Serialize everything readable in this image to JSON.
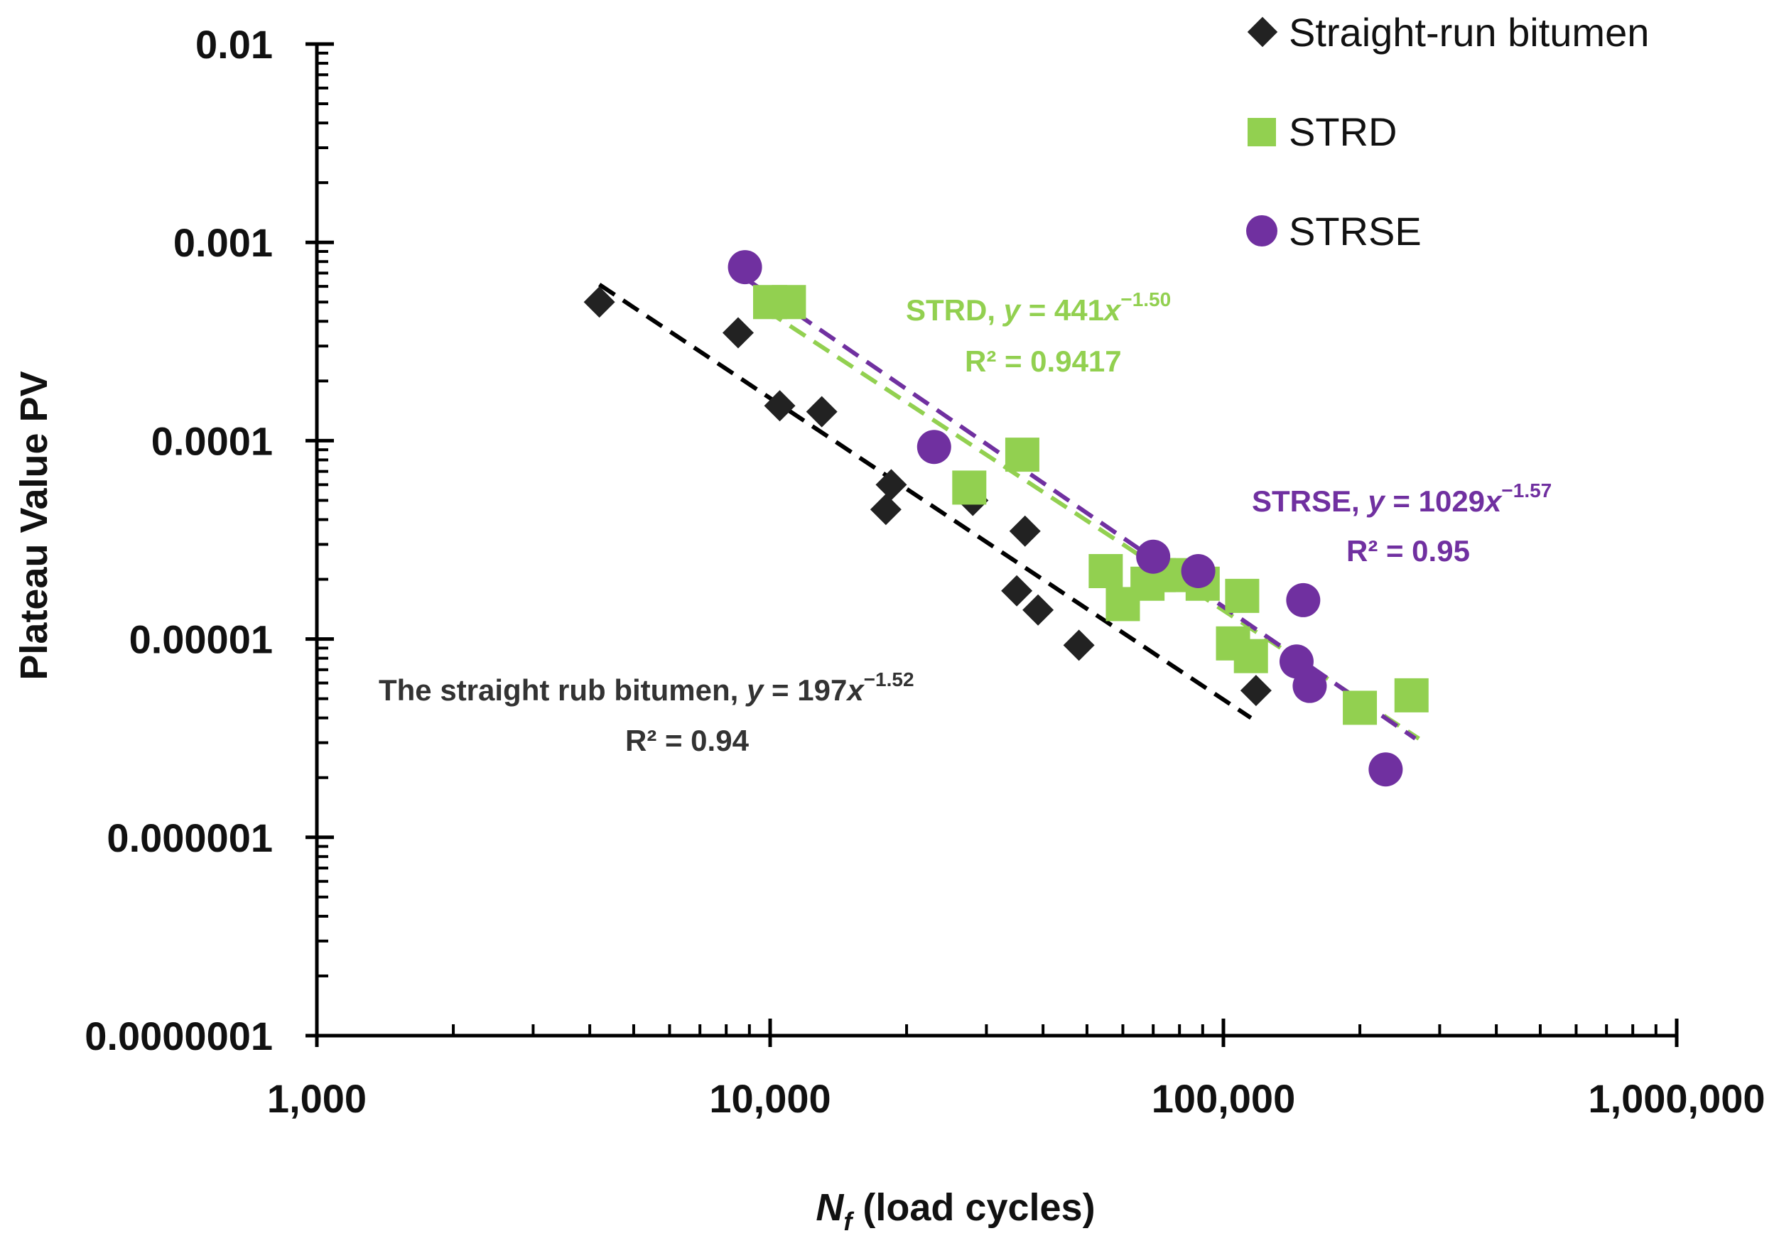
{
  "chart_data": {
    "type": "scatter",
    "title": "",
    "xlabel": {
      "var": "N",
      "sub": "f",
      "rest": " (load cycles)"
    },
    "ylabel": "Plateau Value PV",
    "x_scale": "log",
    "y_scale": "log",
    "xlim": [
      1000,
      1000000
    ],
    "ylim": [
      1e-07,
      0.01
    ],
    "x_ticks": [
      {
        "value": 1000,
        "label": "1,000"
      },
      {
        "value": 10000,
        "label": "10,000"
      },
      {
        "value": 100000,
        "label": "100,000"
      },
      {
        "value": 1000000,
        "label": "1,000,000"
      }
    ],
    "y_ticks": [
      {
        "value": 0.01,
        "label": "0.01"
      },
      {
        "value": 0.001,
        "label": "0.001"
      },
      {
        "value": 0.0001,
        "label": "0.0001"
      },
      {
        "value": 1e-05,
        "label": "0.00001"
      },
      {
        "value": 1e-06,
        "label": "0.000001"
      },
      {
        "value": 1e-07,
        "label": "0.0000001"
      }
    ],
    "legend_position": "top-right",
    "series": [
      {
        "name": "Straight-run bitumen",
        "marker": "diamond",
        "color": "#222222",
        "x": [
          4200,
          8500,
          10500,
          13000,
          18000,
          18500,
          28000,
          35000,
          36500,
          39000,
          48000,
          118000
        ],
        "y": [
          0.0005,
          0.00035,
          0.00015,
          0.00014,
          4.5e-05,
          6e-05,
          5e-05,
          1.75e-05,
          3.5e-05,
          1.4e-05,
          9.3e-06,
          5.5e-06
        ],
        "trend": {
          "coef": 197,
          "exp": -1.52,
          "x_range": [
            4200,
            115000
          ],
          "label_prefix": "The straight rub bitumen, ",
          "y_label": "y",
          "eq_mid": " = 197",
          "x_label": "x",
          "exp_label": "−1.52",
          "r2_label": "R² = 0.94"
        }
      },
      {
        "name": "STRD",
        "marker": "square",
        "color": "#92d050",
        "x": [
          10000,
          11000,
          27500,
          36000,
          55000,
          60000,
          68000,
          72000,
          80000,
          90000,
          105000,
          110000,
          115000,
          200000,
          260000
        ],
        "y": [
          0.0005,
          0.0005,
          5.8e-05,
          8.5e-05,
          2.2e-05,
          1.5e-05,
          1.9e-05,
          2.1e-05,
          2.1e-05,
          1.9e-05,
          9.5e-06,
          1.65e-05,
          8.2e-06,
          4.5e-06,
          5.2e-06
        ],
        "trend": {
          "coef": 441,
          "exp": -1.5,
          "x_range": [
            9800,
            270000
          ],
          "label_prefix": "STRD, ",
          "y_label": "y",
          "eq_mid": " = 441",
          "x_label": "x",
          "exp_label": "−1.50",
          "r2_label": "R² = 0.9417"
        }
      },
      {
        "name": "STRSE",
        "marker": "circle",
        "color": "#7030a0",
        "x": [
          8800,
          23000,
          70000,
          88000,
          145000,
          150000,
          155000,
          228000
        ],
        "y": [
          0.00075,
          9.3e-05,
          2.6e-05,
          2.2e-05,
          7.7e-06,
          1.57e-05,
          5.8e-06,
          2.2e-06
        ],
        "trend": {
          "coef": 1029,
          "exp": -1.57,
          "x_range": [
            9000,
            265000
          ],
          "label_prefix": "STRSE, ",
          "y_label": "y",
          "eq_mid": " = 1029",
          "x_label": "x",
          "exp_label": "−1.57",
          "r2_label": "R² = 0.95"
        }
      }
    ]
  }
}
